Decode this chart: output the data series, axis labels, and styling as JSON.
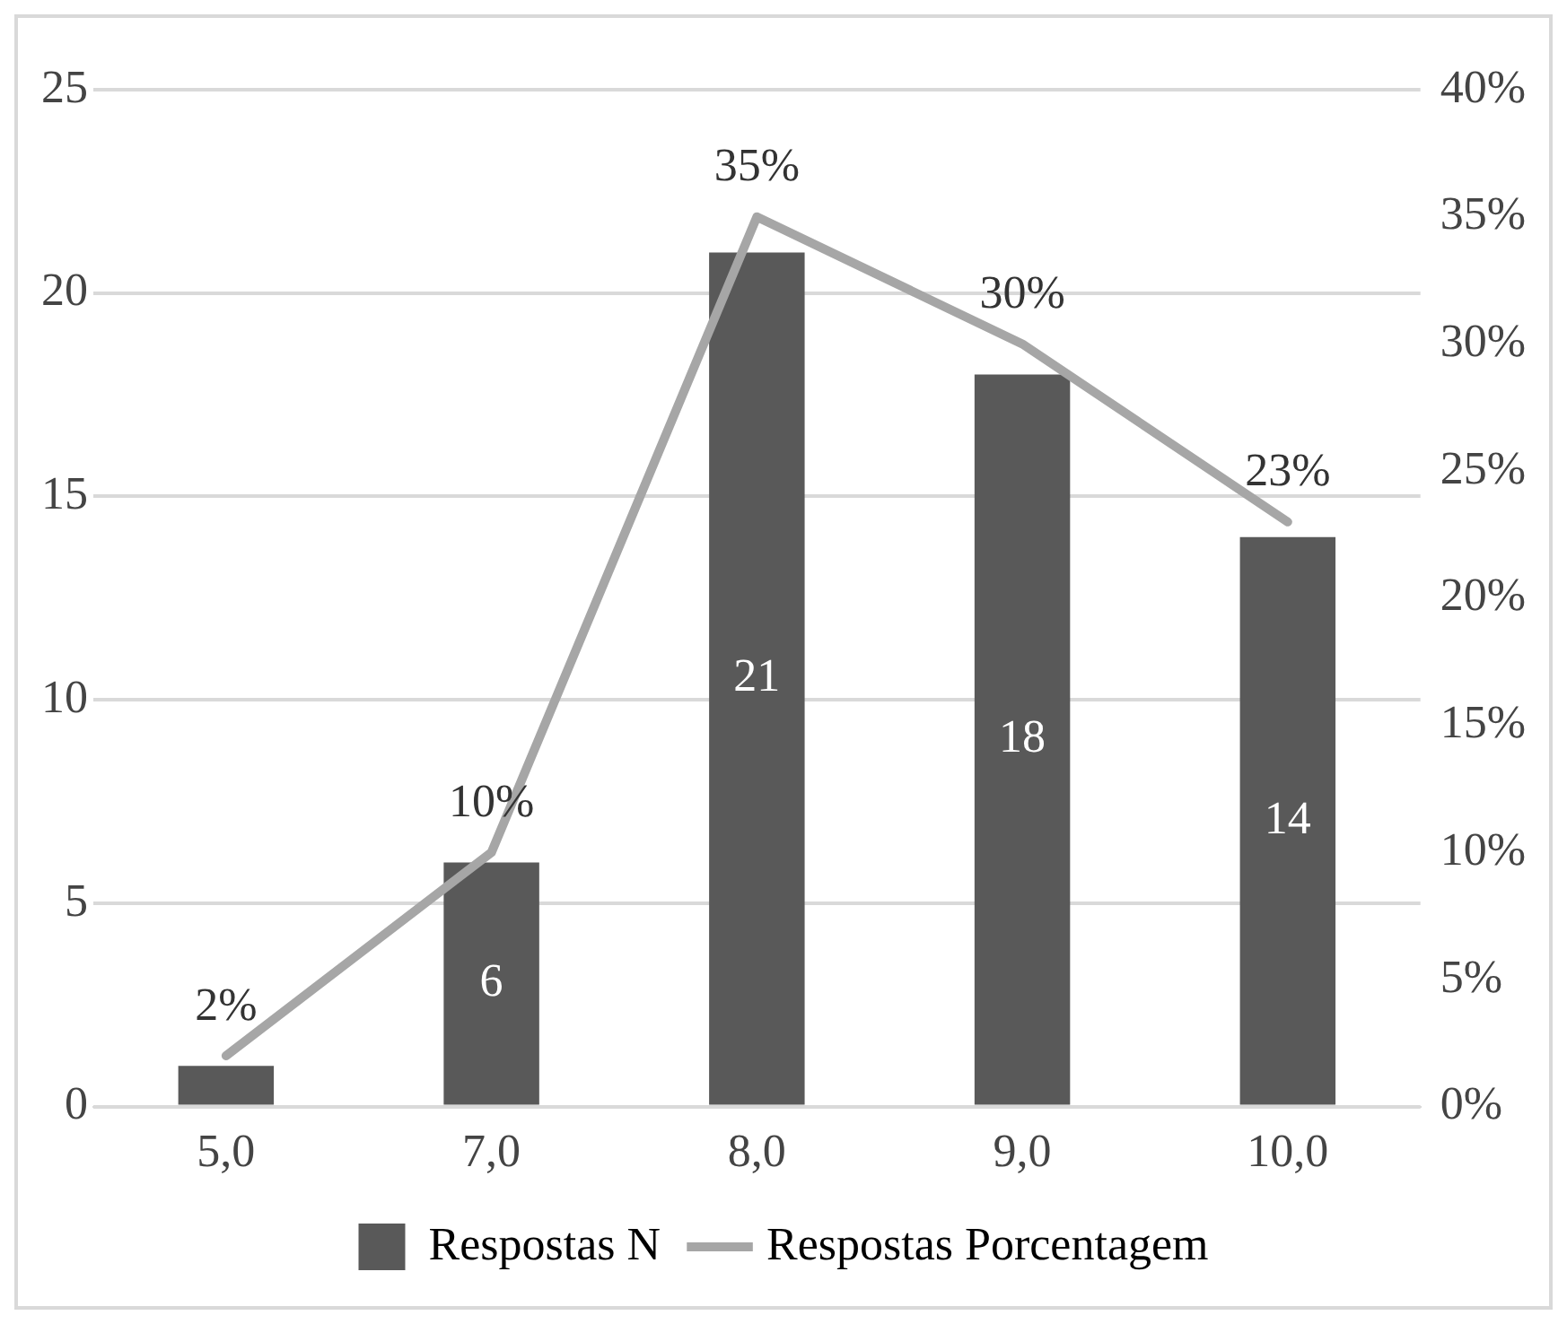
{
  "chart_data": {
    "type": "bar",
    "categories": [
      "5,0",
      "7,0",
      "8,0",
      "9,0",
      "10,0"
    ],
    "series": [
      {
        "name": "Respostas N",
        "color": "#595959",
        "values": [
          1,
          6,
          21,
          18,
          14
        ],
        "value_labels": [
          null,
          "6",
          "21",
          "18",
          "14"
        ]
      },
      {
        "name": "Respostas Porcentagem",
        "type": "line",
        "axis": "y2",
        "color": "#a6a6a6",
        "values": [
          2,
          10,
          35,
          30,
          23
        ],
        "value_labels": [
          "2%",
          "10%",
          "35%",
          "30%",
          "23%"
        ]
      }
    ],
    "ylim": [
      0,
      25
    ],
    "yticks": [
      0,
      5,
      10,
      15,
      20,
      25
    ],
    "y2lim": [
      0,
      40
    ],
    "y2ticks": [
      {
        "value": 0,
        "label": "0%"
      },
      {
        "value": 5,
        "label": "5%"
      },
      {
        "value": 10,
        "label": "10%"
      },
      {
        "value": 15,
        "label": "15%"
      },
      {
        "value": 20,
        "label": "20%"
      },
      {
        "value": 25,
        "label": "25%"
      },
      {
        "value": 30,
        "label": "30%"
      },
      {
        "value": 35,
        "label": "35%"
      },
      {
        "value": 40,
        "label": "40%"
      }
    ],
    "grid": "y",
    "legend": "bottom",
    "marker": "none",
    "line_style": "solid"
  }
}
